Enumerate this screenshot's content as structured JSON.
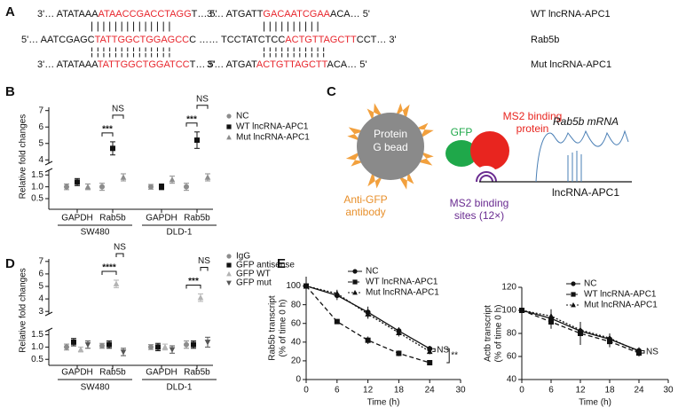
{
  "panels": [
    "A",
    "B",
    "C",
    "D",
    "E"
  ],
  "alignment": {
    "highlight_color": "#e8262d",
    "rows": [
      {
        "label": "WT lncRNA-APC1",
        "blocks": [
          [
            {
              "text": "3'… ATATAAA",
              "highlight": false
            },
            {
              "text": "ATAACCGACCTAGG",
              "highlight": true
            },
            {
              "text": "T… 5'",
              "highlight": false
            }
          ],
          [
            {
              "text": "3'… ATGATT",
              "highlight": false
            },
            {
              "text": "GACAATCGAA",
              "highlight": true
            },
            {
              "text": "ACA… 5'",
              "highlight": false
            }
          ]
        ]
      },
      {
        "label": "Rab5b",
        "blocks": [
          [
            {
              "text": "5'… AATCGAGC",
              "highlight": false
            },
            {
              "text": "TATTGGCTGGAGCC",
              "highlight": true
            },
            {
              "text": "C …… TCCTATCTCC",
              "highlight": false
            },
            {
              "text": "ACTGTTAGCTT",
              "highlight": true
            },
            {
              "text": "CCT… 3'",
              "highlight": false
            }
          ]
        ]
      },
      {
        "label": "Mut lncRNA-APC1",
        "blocks": [
          [
            {
              "text": "3'… ATATAAA",
              "highlight": false
            },
            {
              "text": "TATTGGCTGGATCC",
              "highlight": true
            },
            {
              "text": "T… 5'",
              "highlight": false
            }
          ],
          [
            {
              "text": "3'… ATGAT",
              "highlight": false
            },
            {
              "text": "ACTGTTAGCTT",
              "highlight": true
            },
            {
              "text": "ACA… 5'",
              "highlight": false
            }
          ]
        ]
      }
    ],
    "pairs": [
      [
        "||||||||||||||",
        "||||||||||"
      ],
      [
        "¦¦¦¦¦¦¦¦¦¦¦¦¦¦",
        "¦¦¦¦¦¦¦¦¦¦¦"
      ]
    ]
  },
  "diagram": {
    "bead": [
      "Protein",
      "G bead"
    ],
    "gfp": "GFP",
    "ms2_protein": [
      "MS2 binding",
      "protein"
    ],
    "mrna": "Rab5b mRNA",
    "antibody": [
      "Anti-GFP",
      "antibody"
    ],
    "sites": [
      "MS2 binding",
      "sites (12×)"
    ],
    "lncrna": "lncRNA-APC1"
  },
  "chart_data": [
    {
      "type": "dot",
      "y_label": "Relative fold changes",
      "categories": [
        "GAPDH",
        "Rab5b",
        "GAPDH",
        "Rab5b"
      ],
      "groups": [
        "SW480",
        "DLD-1"
      ],
      "ylim": [
        0.2,
        7.2
      ],
      "ybreak": [
        1.7,
        3.8
      ],
      "yticks": [
        0.5,
        {
          "value": 1,
          "label": "1.0"
        },
        1.5,
        4,
        5,
        6,
        7
      ],
      "series": [
        {
          "name": "NC",
          "color": "#8c8c8c",
          "marker": "circle",
          "values": [
            1.0,
            1.0,
            1.0,
            1.0
          ],
          "errors": [
            0.12,
            0.15,
            0.1,
            0.15
          ]
        },
        {
          "name": "WT lncRNA-APC1",
          "color": "#111111",
          "marker": "square",
          "values": [
            1.2,
            4.7,
            1.0,
            5.2
          ],
          "errors": [
            0.15,
            0.4,
            0.12,
            0.5
          ]
        },
        {
          "name": "Mut lncRNA-APC1",
          "color": "#8c8c8c",
          "marker": "triangle",
          "values": [
            1.0,
            1.4,
            1.3,
            1.4
          ],
          "errors": [
            0.12,
            0.15,
            0.15,
            0.15
          ]
        }
      ],
      "significance": [
        null,
        {
          "label": "***",
          "ns": "NS"
        },
        null,
        {
          "label": "***",
          "ns": "NS"
        }
      ]
    },
    {
      "type": "dot",
      "y_label": "Relative fold changes",
      "categories": [
        "GAPDH",
        "Rab5b",
        "GAPDH",
        "Rab5b"
      ],
      "groups": [
        "SW480",
        "DLD-1"
      ],
      "ylim": [
        0.4,
        7.2
      ],
      "ybreak": [
        1.7,
        2.8
      ],
      "yticks": [
        0.5,
        {
          "value": 1,
          "label": "1.0"
        },
        1.5,
        3,
        4,
        5,
        6,
        7
      ],
      "series": [
        {
          "name": "IgG",
          "color": "#8c8c8c",
          "marker": "circle",
          "values": [
            1.0,
            1.05,
            1.0,
            1.1
          ],
          "errors": [
            0.12,
            0.1,
            0.1,
            0.15
          ]
        },
        {
          "name": "GFP antisense",
          "color": "#111111",
          "marker": "square",
          "values": [
            1.2,
            1.1,
            1.0,
            1.1
          ],
          "errors": [
            0.15,
            0.15,
            0.15,
            0.15
          ]
        },
        {
          "name": "GFP WT",
          "color": "#b3b3b3",
          "marker": "triangle",
          "values": [
            0.9,
            5.2,
            1.0,
            4.1
          ],
          "errors": [
            0.1,
            0.3,
            0.12,
            0.3
          ]
        },
        {
          "name": "GFP mut",
          "color": "#555555",
          "marker": "triangle-down",
          "values": [
            1.1,
            0.8,
            0.9,
            1.2
          ],
          "errors": [
            0.15,
            0.15,
            0.15,
            0.2
          ]
        }
      ],
      "significance": [
        null,
        {
          "label": "****",
          "ns": "NS"
        },
        null,
        {
          "label": "***",
          "ns": "NS"
        }
      ]
    },
    {
      "type": "line",
      "y_label": [
        "Rab5b transcript",
        "(% of time 0 h)"
      ],
      "x_label": "Time (h)",
      "x": [
        0,
        6,
        12,
        18,
        24
      ],
      "xlim": [
        0,
        30
      ],
      "xticks": [
        0,
        6,
        12,
        18,
        24,
        30
      ],
      "ylim": [
        0,
        110
      ],
      "yticks": [
        0,
        20,
        40,
        60,
        80,
        100
      ],
      "series": [
        {
          "name": "NC",
          "color": "#111111",
          "marker": "circle",
          "dash": "solid",
          "values": [
            100,
            90,
            72,
            52,
            33
          ],
          "errors": [
            2,
            5,
            6,
            4,
            3
          ]
        },
        {
          "name": "WT lncRNA-APC1",
          "color": "#111111",
          "marker": "square",
          "dash": "dashed",
          "values": [
            100,
            62,
            42,
            28,
            18
          ],
          "errors": [
            2,
            2,
            4,
            3,
            2
          ]
        },
        {
          "name": "Mut lncRNA-APC1",
          "color": "#111111",
          "marker": "triangle",
          "dash": "dotted",
          "values": [
            100,
            92,
            70,
            50,
            30
          ],
          "errors": [
            2,
            4,
            5,
            4,
            3
          ]
        }
      ],
      "annotations": [
        "NS",
        "**"
      ]
    },
    {
      "type": "line",
      "y_label": [
        "Actb transcript",
        "(% of time 0 h)"
      ],
      "x_label": "Time (h)",
      "x": [
        0,
        6,
        12,
        18,
        24
      ],
      "xlim": [
        0,
        30
      ],
      "xticks": [
        0,
        6,
        12,
        18,
        24,
        30
      ],
      "ylim": [
        40,
        120
      ],
      "yticks": [
        40,
        60,
        80,
        100,
        120
      ],
      "series": [
        {
          "name": "NC",
          "color": "#111111",
          "marker": "circle",
          "dash": "solid",
          "values": [
            100,
            93,
            82,
            75,
            65
          ],
          "errors": [
            3,
            8,
            6,
            4,
            3
          ]
        },
        {
          "name": "WT lncRNA-APC1",
          "color": "#111111",
          "marker": "square",
          "dash": "dashed",
          "values": [
            100,
            90,
            80,
            73,
            63
          ],
          "errors": [
            3,
            6,
            10,
            5,
            3
          ]
        },
        {
          "name": "Mut lncRNA-APC1",
          "color": "#111111",
          "marker": "triangle",
          "dash": "dotted",
          "values": [
            100,
            95,
            83,
            76,
            64
          ],
          "errors": [
            3,
            5,
            6,
            4,
            3
          ]
        }
      ],
      "annotations": [
        "NS"
      ]
    }
  ]
}
